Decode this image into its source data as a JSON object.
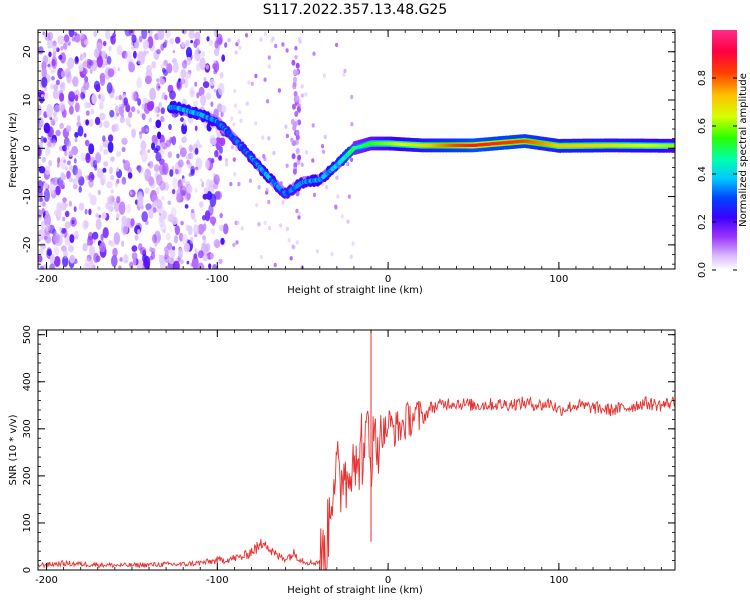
{
  "title": "S117.2022.357.13.48.G25",
  "chart_data": [
    {
      "type": "heatmap",
      "id": "spectrogram",
      "xlabel": "Height of straight line (km)",
      "ylabel": "Frequency (Hz)",
      "xlim": [
        -205,
        168
      ],
      "ylim": [
        -25,
        24.5
      ],
      "xticks": [
        -200,
        -100,
        0,
        100
      ],
      "yticks": [
        -20,
        -10,
        0,
        10,
        20
      ],
      "colorbar": {
        "label": "Normalized spectral amplitude",
        "range": [
          0,
          1
        ],
        "ticks": [
          0.0,
          0.2,
          0.4,
          0.6,
          0.8
        ],
        "tick_labels": [
          "0.0",
          "0.2",
          "0.4",
          "0.6",
          "0.8"
        ]
      },
      "ridge": [
        {
          "x": -125,
          "y": 8.5,
          "amp": 0.32
        },
        {
          "x": -110,
          "y": 7.0,
          "amp": 0.34
        },
        {
          "x": -100,
          "y": 5.5,
          "amp": 0.3
        },
        {
          "x": -90,
          "y": 2.0,
          "amp": 0.28
        },
        {
          "x": -80,
          "y": -2.0,
          "amp": 0.3
        },
        {
          "x": -70,
          "y": -6.0,
          "amp": 0.32
        },
        {
          "x": -60,
          "y": -9.5,
          "amp": 0.28
        },
        {
          "x": -50,
          "y": -7.0,
          "amp": 0.3
        },
        {
          "x": -40,
          "y": -6.5,
          "amp": 0.32
        },
        {
          "x": -30,
          "y": -3.5,
          "amp": 0.36
        },
        {
          "x": -20,
          "y": 0.0,
          "amp": 0.45
        },
        {
          "x": -10,
          "y": 1.0,
          "amp": 0.55
        },
        {
          "x": 0,
          "y": 1.0,
          "amp": 0.6
        },
        {
          "x": 20,
          "y": 0.6,
          "amp": 0.7
        },
        {
          "x": 50,
          "y": 0.6,
          "amp": 0.88
        },
        {
          "x": 80,
          "y": 1.5,
          "amp": 0.82
        },
        {
          "x": 100,
          "y": 0.5,
          "amp": 0.72
        },
        {
          "x": 130,
          "y": 0.6,
          "amp": 0.7
        },
        {
          "x": 168,
          "y": 0.5,
          "amp": 0.6
        }
      ]
    },
    {
      "type": "line",
      "id": "snr",
      "xlabel": "Height of straight line (km)",
      "ylabel": "SNR (10 * v/v)",
      "xlim": [
        -205,
        168
      ],
      "ylim": [
        0,
        510
      ],
      "xticks": [
        -200,
        -100,
        0,
        100
      ],
      "yticks": [
        0,
        100,
        200,
        300,
        400,
        500
      ],
      "color": "#e8302f",
      "series": [
        {
          "name": "SNR",
          "x": [
            -205,
            -190,
            -175,
            -160,
            -150,
            -140,
            -130,
            -120,
            -110,
            -100,
            -95,
            -90,
            -85,
            -80,
            -75,
            -72,
            -70,
            -65,
            -60,
            -55,
            -50,
            -45,
            -40,
            -36,
            -34,
            -32,
            -30,
            -28,
            -26,
            -24,
            -22,
            -20,
            -18,
            -16,
            -14,
            -12,
            -10,
            -8,
            -6,
            -4,
            -2,
            0,
            4,
            8,
            12,
            16,
            20,
            25,
            30,
            35,
            40,
            50,
            60,
            70,
            80,
            90,
            95,
            100,
            110,
            120,
            130,
            140,
            150,
            160,
            168
          ],
          "y": [
            10,
            14,
            12,
            10,
            10,
            11,
            12,
            12,
            15,
            20,
            22,
            25,
            28,
            40,
            50,
            70,
            45,
            30,
            25,
            35,
            20,
            15,
            18,
            40,
            140,
            200,
            220,
            150,
            240,
            180,
            230,
            280,
            170,
            300,
            200,
            330,
            250,
            270,
            280,
            300,
            290,
            310,
            300,
            305,
            320,
            330,
            320,
            345,
            350,
            355,
            355,
            350,
            352,
            352,
            355,
            350,
            355,
            340,
            350,
            345,
            340,
            345,
            355,
            350,
            358
          ]
        }
      ],
      "spike": {
        "x": -10,
        "y": 510
      }
    }
  ]
}
